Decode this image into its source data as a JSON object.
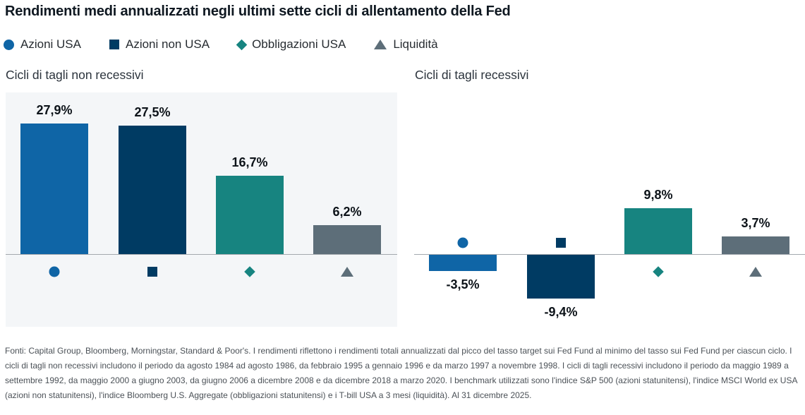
{
  "title": "Rendimenti medi annualizzati negli ultimi sette cicli di allentamento della Fed",
  "legend": {
    "items": [
      {
        "key": "azioni-usa",
        "label": "Azioni USA",
        "marker": "circle",
        "color": "#0f65a6"
      },
      {
        "key": "azioni-non-usa",
        "label": "Azioni non USA",
        "marker": "square",
        "color": "#003b63"
      },
      {
        "key": "obbligazioni-usa",
        "label": "Obbligazioni USA",
        "marker": "diamond",
        "color": "#178480"
      },
      {
        "key": "liquidita",
        "label": "Liquidità",
        "marker": "triangle",
        "color": "#5d6e79"
      }
    ]
  },
  "chart_data": [
    {
      "type": "bar",
      "title": "Cicli di tagli non recessivi",
      "categories": [
        "Azioni USA",
        "Azioni non USA",
        "Obbligazioni USA",
        "Liquidità"
      ],
      "values": [
        27.9,
        27.5,
        16.7,
        6.2
      ],
      "labels": [
        "27,9%",
        "27,5%",
        "16,7%",
        "6,2%"
      ],
      "unit": "%",
      "baseline": 0,
      "ylim": [
        0,
        34
      ],
      "grid": false,
      "data_labels": true,
      "legend_position": "top",
      "panel_background": "#f4f6f8"
    },
    {
      "type": "bar",
      "title": "Cicli di tagli recessivi",
      "categories": [
        "Azioni USA",
        "Azioni non USA",
        "Obbligazioni USA",
        "Liquidità"
      ],
      "values": [
        -3.5,
        -9.4,
        9.8,
        3.7
      ],
      "labels": [
        "-3,5%",
        "-9,4%",
        "9,8%",
        "3,7%"
      ],
      "unit": "%",
      "baseline": 0,
      "ylim": [
        -12,
        34
      ],
      "grid": false,
      "data_labels": true,
      "legend_position": "top",
      "panel_background": "#ffffff"
    }
  ],
  "footnote": "Fonti: Capital Group, Bloomberg, Morningstar, Standard & Poor's. I rendimenti riflettono i rendimenti totali annualizzati dal picco del tasso target sui Fed Fund al minimo del tasso sui Fed Fund per ciascun ciclo. I cicli di tagli non recessivi includono il periodo da agosto 1984 ad agosto 1986, da febbraio 1995 a gennaio 1996 e da marzo 1997 a novembre 1998. I cicli di tagli recessivi includono il periodo da maggio 1989 a settembre 1992, da maggio 2000 a giugno 2003, da giugno 2006 a dicembre 2008 e da dicembre 2018 a marzo 2020. I benchmark utilizzati sono l'indice S&P 500 (azioni statunitensi), l'indice MSCI World ex USA (azioni non statunitensi), l'indice Bloomberg U.S. Aggregate (obbligazioni statunitensi) e i T-bill USA a 3 mesi (liquidità). Al 31 dicembre 2025.",
  "colors": {
    "panel_bg": "#f4f6f8",
    "axis_line": "#a3a9ae",
    "title_text": "#0f1821",
    "label_text": "#0d1319",
    "footnote_text": "#4b5157"
  }
}
